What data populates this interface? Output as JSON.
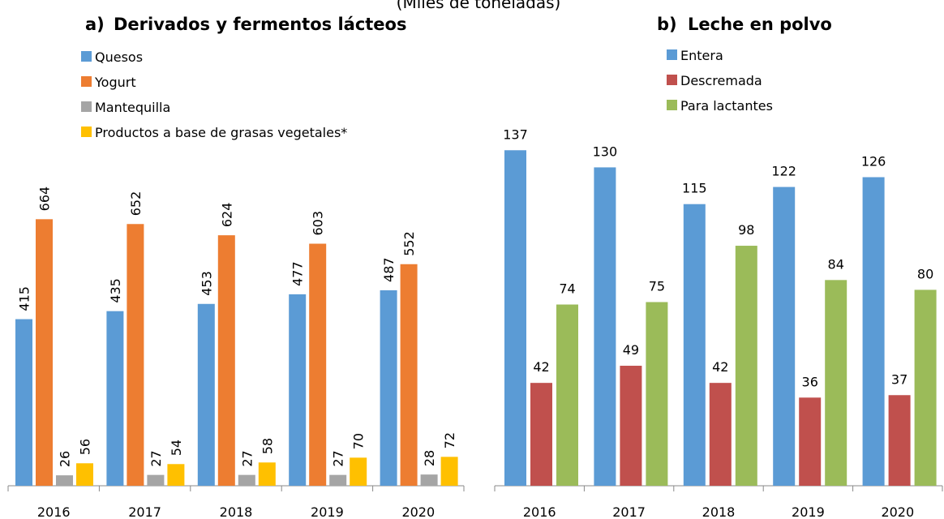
{
  "subtitle": "(Miles de toneladas)",
  "chart_data": [
    {
      "type": "bar",
      "panel": "a)",
      "title": "Derivados y fermentos lácteos",
      "categories": [
        "2016",
        "2017",
        "2018",
        "2019",
        "2020"
      ],
      "ylim": [
        0,
        800
      ],
      "series": [
        {
          "name": "Quesos",
          "color": "#5b9bd5",
          "values": [
            415,
            435,
            453,
            477,
            487
          ]
        },
        {
          "name": "Yogurt",
          "color": "#ed7d31",
          "values": [
            664,
            652,
            624,
            603,
            552
          ]
        },
        {
          "name": "Mantequilla",
          "color": "#a5a5a5",
          "values": [
            26,
            27,
            27,
            27,
            28
          ]
        },
        {
          "name": "Productos a base de grasas vegetales*",
          "color": "#ffc000",
          "values": [
            56,
            54,
            58,
            70,
            72
          ]
        }
      ]
    },
    {
      "type": "bar",
      "panel": "b)",
      "title": "Leche en polvo",
      "categories": [
        "2016",
        "2017",
        "2018",
        "2019",
        "2020"
      ],
      "ylim": [
        0,
        150
      ],
      "series": [
        {
          "name": "Entera",
          "color": "#5b9bd5",
          "values": [
            137,
            130,
            115,
            122,
            126
          ]
        },
        {
          "name": "Descremada",
          "color": "#c0504d",
          "values": [
            42,
            49,
            42,
            36,
            37
          ]
        },
        {
          "name": "Para lactantes",
          "color": "#9bbb59",
          "values": [
            74,
            75,
            98,
            84,
            80
          ]
        }
      ]
    }
  ]
}
